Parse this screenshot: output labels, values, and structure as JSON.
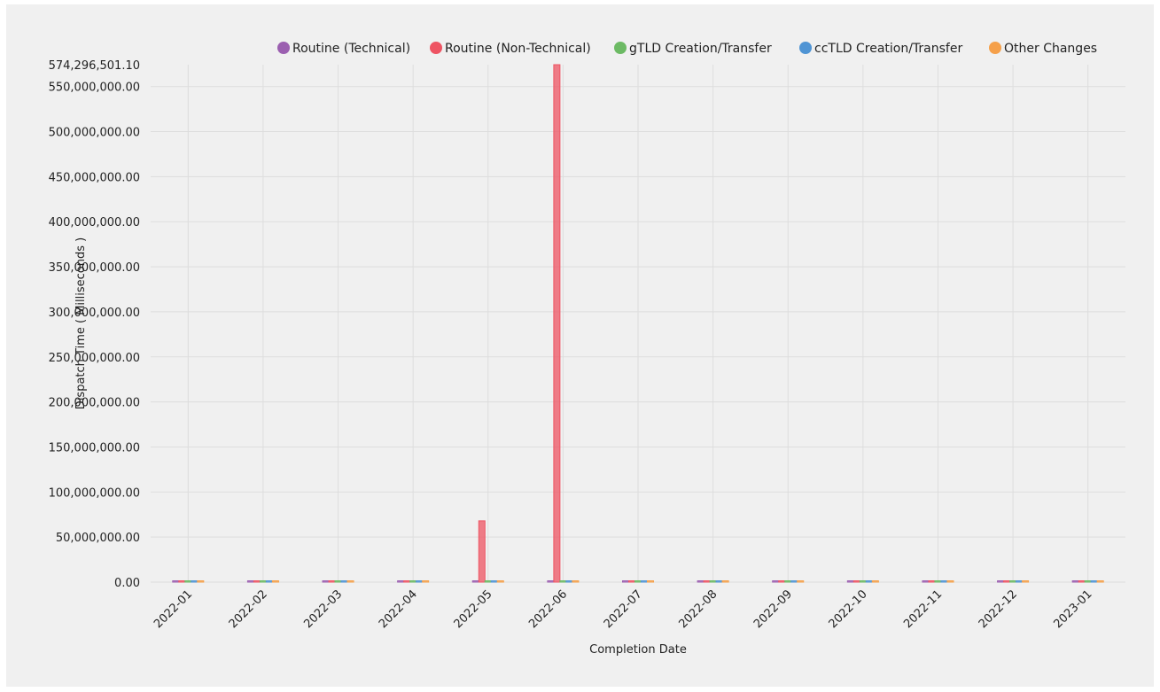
{
  "chart_data": {
    "type": "bar",
    "xlabel": "Completion Date",
    "ylabel": "Dispatch Time ( Milliseconds )",
    "ylim": [
      0,
      574296501.1
    ],
    "y_top_label": "574,296,501.10",
    "yticks": [
      0,
      50000000,
      100000000,
      150000000,
      200000000,
      250000000,
      300000000,
      350000000,
      400000000,
      450000000,
      500000000,
      550000000
    ],
    "ytick_labels": [
      "0.00",
      "50,000,000.00",
      "100,000,000.00",
      "150,000,000.00",
      "200,000,000.00",
      "250,000,000.00",
      "300,000,000.00",
      "350,000,000.00",
      "400,000,000.00",
      "450,000,000.00",
      "500,000,000.00",
      "550,000,000.00"
    ],
    "grid": true,
    "legend_position": "top-right",
    "categories": [
      "2022-01",
      "2022-02",
      "2022-03",
      "2022-04",
      "2022-05",
      "2022-06",
      "2022-07",
      "2022-08",
      "2022-09",
      "2022-10",
      "2022-11",
      "2022-12",
      "2023-01"
    ],
    "series": [
      {
        "name": "Routine (Technical)",
        "color": "#9b5fb0",
        "values": [
          900000,
          900000,
          900000,
          900000,
          900000,
          900000,
          900000,
          900000,
          900000,
          900000,
          900000,
          900000,
          900000
        ]
      },
      {
        "name": "Routine (Non-Technical)",
        "color": "#ee5463",
        "values": [
          900000,
          900000,
          900000,
          900000,
          68000000,
          574296501.1,
          900000,
          900000,
          900000,
          900000,
          900000,
          900000,
          900000
        ]
      },
      {
        "name": "gTLD Creation/Transfer",
        "color": "#6cba64",
        "values": [
          900000,
          900000,
          900000,
          900000,
          900000,
          900000,
          900000,
          900000,
          900000,
          900000,
          900000,
          900000,
          900000
        ]
      },
      {
        "name": "ccTLD Creation/Transfer",
        "color": "#4f94d4",
        "values": [
          900000,
          900000,
          900000,
          900000,
          900000,
          900000,
          900000,
          900000,
          900000,
          900000,
          900000,
          900000,
          900000
        ]
      },
      {
        "name": "Other Changes",
        "color": "#f5a04a",
        "values": [
          900000,
          900000,
          900000,
          900000,
          900000,
          900000,
          900000,
          900000,
          900000,
          900000,
          900000,
          900000,
          900000
        ]
      }
    ]
  }
}
